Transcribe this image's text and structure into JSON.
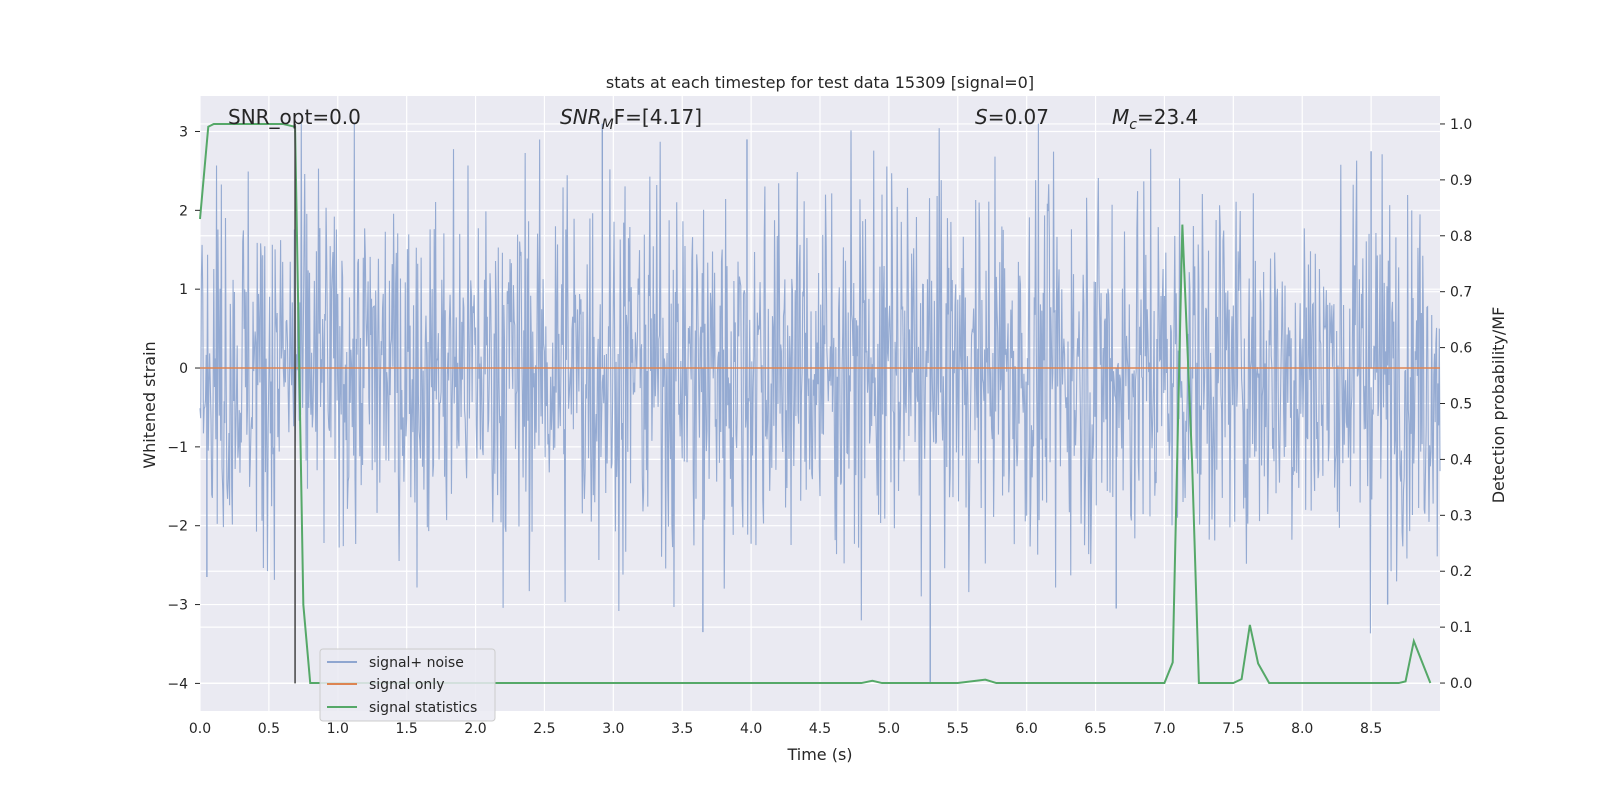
{
  "chart_data": {
    "type": "line",
    "title": "stats at each timestep for test data 15309 [signal=0]",
    "xlabel": "Time (s)",
    "ylabel": "Whitened strain",
    "y2label": "Detection probability/MF",
    "xlim": [
      0.0,
      9.0
    ],
    "ylim": [
      -4.35,
      3.45
    ],
    "y2lim": [
      -0.05,
      1.05
    ],
    "grid": true,
    "legend_position": "lower-left",
    "xticks": [
      "0.0",
      "0.5",
      "1.0",
      "1.5",
      "2.0",
      "2.5",
      "3.0",
      "3.5",
      "4.0",
      "4.5",
      "5.0",
      "5.5",
      "6.0",
      "6.5",
      "7.0",
      "7.5",
      "8.0",
      "8.5"
    ],
    "yticks": [
      "3",
      "2",
      "1",
      "0",
      "−1",
      "−2",
      "−3",
      "−4"
    ],
    "y2ticks": [
      "1.0",
      "0.9",
      "0.8",
      "0.7",
      "0.6",
      "0.5",
      "0.4",
      "0.3",
      "0.2",
      "0.1",
      "0.0"
    ],
    "annotations": {
      "snr_opt": "SNR_opt=0.0",
      "snr_mf_sym": "SNR",
      "snr_mf_sub": "M",
      "snr_mf_rest": "F=[4.17]",
      "s_sym": "S",
      "s_val": "=0.07",
      "mc_sym": "M",
      "mc_sub": "c",
      "mc_val": "=23.4"
    },
    "series": [
      {
        "name": "signal+ noise",
        "color": "#8fa6d0",
        "axis": "left",
        "style": "noise",
        "duration_s": 9.0,
        "typical_amplitude": 1.6,
        "max": 3.1,
        "min": -4.0
      },
      {
        "name": "signal only",
        "color": "#dd8452",
        "axis": "left",
        "x": [
          0.0,
          9.0
        ],
        "y": [
          0.0,
          0.0
        ]
      },
      {
        "name": "signal statistics",
        "color": "#55a868",
        "axis": "right",
        "x": [
          0.0,
          0.06,
          0.1,
          0.2,
          0.4,
          0.6,
          0.69,
          0.75,
          0.8,
          1.0,
          2.0,
          3.0,
          4.0,
          4.8,
          4.88,
          4.95,
          5.5,
          5.7,
          5.78,
          6.5,
          7.0,
          7.06,
          7.13,
          7.2,
          7.25,
          7.4,
          7.5,
          7.56,
          7.62,
          7.68,
          7.76,
          8.0,
          8.5,
          8.7,
          8.75,
          8.81,
          8.93
        ],
        "y": [
          0.83,
          0.995,
          1.0,
          1.0,
          1.0,
          1.0,
          0.995,
          0.14,
          0.0,
          0.0,
          0.0,
          0.0,
          0.0,
          0.0,
          0.004,
          0.0,
          0.0,
          0.006,
          0.0,
          0.0,
          0.0,
          0.037,
          0.82,
          0.4,
          0.0,
          0.0,
          0.0,
          0.007,
          0.104,
          0.035,
          0.0,
          0.0,
          0.0,
          0.0,
          0.003,
          0.075,
          0.0
        ]
      }
    ],
    "vline": {
      "x": 0.69,
      "color": "#444444"
    }
  }
}
